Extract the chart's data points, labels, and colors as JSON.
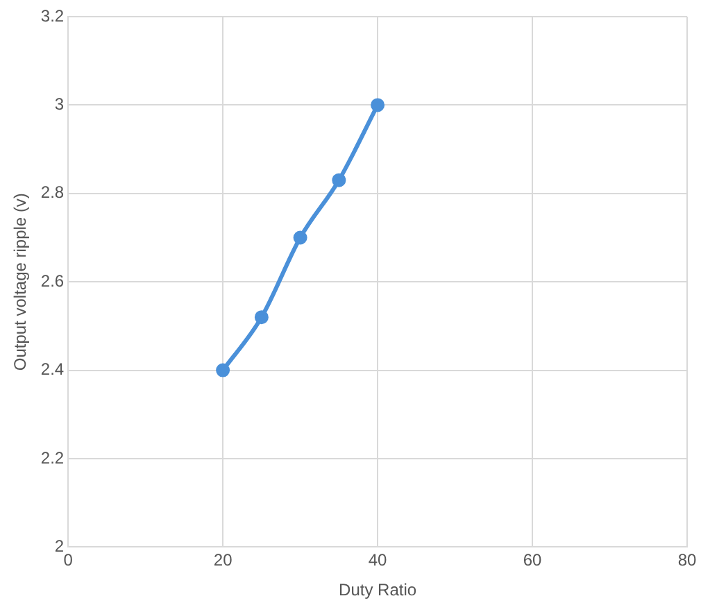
{
  "chart_data": {
    "type": "line",
    "xlabel": "Duty Ratio",
    "ylabel": "Output voltage ripple (v)",
    "series": [
      {
        "color": "#4a90d9",
        "x": [
          20,
          25,
          30,
          35,
          40
        ],
        "values": [
          2.4,
          2.52,
          2.7,
          2.83,
          3.0
        ]
      }
    ],
    "xlim": [
      0,
      80
    ],
    "xticks": [
      0,
      20,
      40,
      60,
      80
    ],
    "ylim": [
      2,
      3.2
    ],
    "yticks": [
      2,
      2.2,
      2.4,
      2.6,
      2.8,
      3,
      3.2
    ],
    "grid": true,
    "legend": false,
    "marker": "circle",
    "line_style": "solid"
  }
}
